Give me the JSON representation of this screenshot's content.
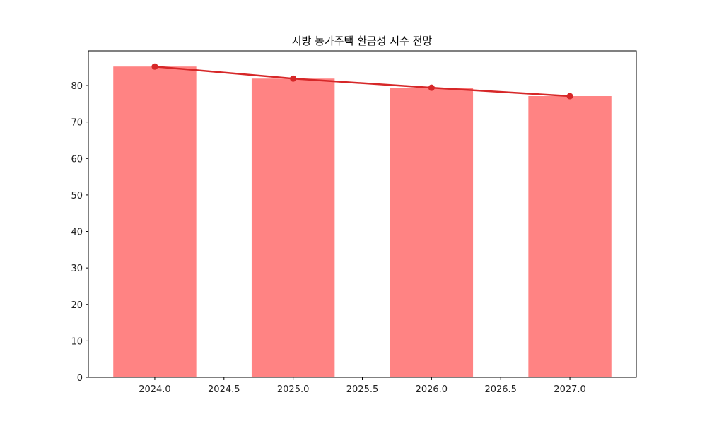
{
  "chart_data": {
    "type": "bar",
    "title": "지방 농가주택 환금성 지수 전망",
    "xlabel": "",
    "ylabel": "",
    "categories": [
      2024,
      2025,
      2026,
      2027
    ],
    "series": [
      {
        "name": "bar",
        "type": "bar",
        "color": "#ff8383",
        "values": [
          85.2,
          81.9,
          79.4,
          77.1
        ]
      },
      {
        "name": "line",
        "type": "line",
        "color": "#d62728",
        "marker": "circle",
        "values": [
          85.2,
          81.9,
          79.4,
          77.1
        ]
      }
    ],
    "xlim": [
      2023.52,
      2027.48
    ],
    "ylim": [
      0,
      89.5
    ],
    "xticks": [
      "2024.0",
      "2024.5",
      "2025.0",
      "2025.5",
      "2026.0",
      "2026.5",
      "2027.0"
    ],
    "yticks": [
      "0",
      "10",
      "20",
      "30",
      "40",
      "50",
      "60",
      "70",
      "80"
    ],
    "grid": false,
    "legend": null
  }
}
